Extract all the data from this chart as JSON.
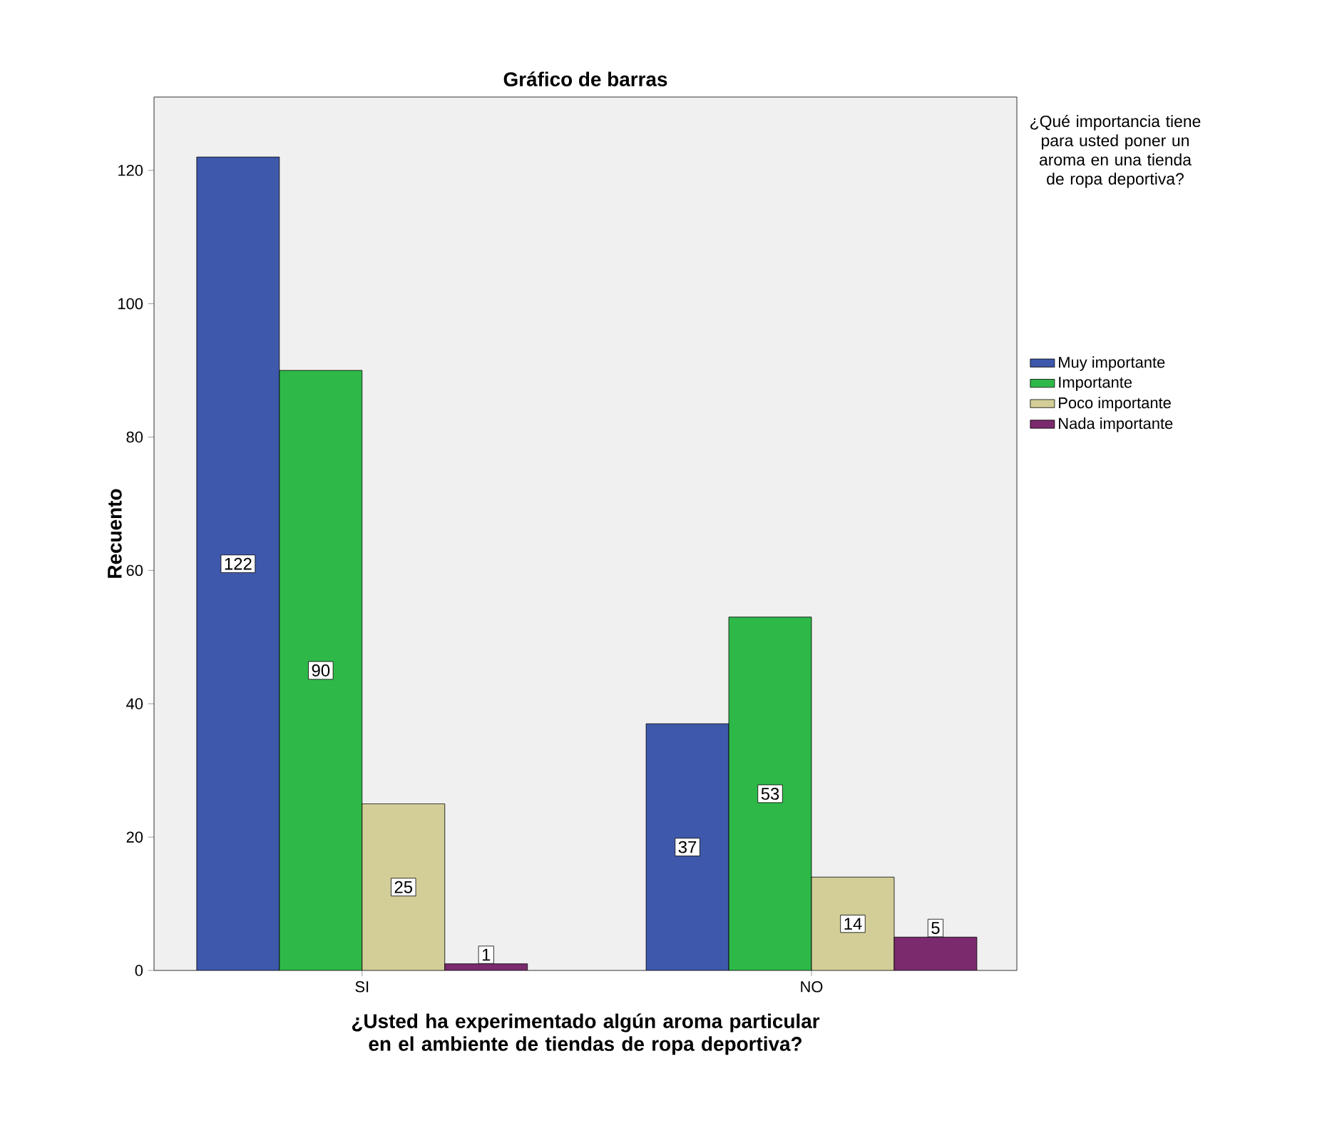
{
  "chart_data": {
    "type": "bar",
    "title": "Gráfico de barras",
    "xlabel": "¿Usted ha experimentado algún aroma particular en el ambiente de tiendas de ropa deportiva?",
    "ylabel": "Recuento",
    "legend_title": "¿Qué importancia tiene para usted poner un aroma en una tienda de ropa deportiva?",
    "categories": [
      "SI",
      "NO"
    ],
    "series": [
      {
        "name": "Muy importante",
        "color": "#3e58ac",
        "values": [
          122,
          37
        ]
      },
      {
        "name": "Importante",
        "color": "#2eb848",
        "values": [
          90,
          53
        ]
      },
      {
        "name": "Poco importante",
        "color": "#d3ce97",
        "values": [
          25,
          14
        ]
      },
      {
        "name": "Nada importante",
        "color": "#7b2a6d",
        "values": [
          1,
          5
        ]
      }
    ],
    "ylim": [
      0,
      131
    ],
    "yticks": [
      0,
      20,
      40,
      60,
      80,
      100,
      120
    ],
    "grid": false,
    "legend": "right",
    "data_labels": true
  }
}
